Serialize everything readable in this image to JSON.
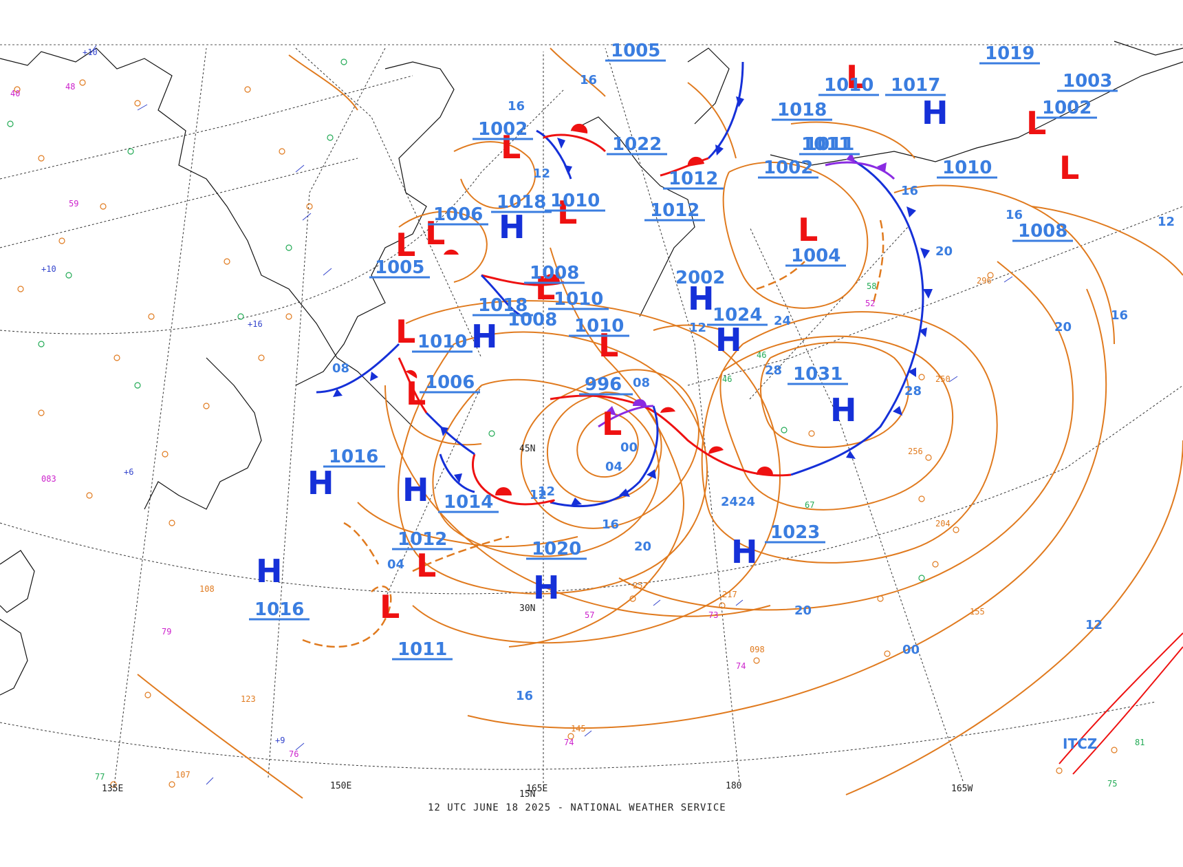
{
  "title": "12 UTC JUNE 18 2025 - NATIONAL WEATHER SERVICE",
  "colors": {
    "isobar": "#e07a1e",
    "isobar_label": "#3a7de0",
    "high": "#1530d8",
    "low": "#ee1111",
    "cold_front": "#1530d8",
    "warm_front": "#ee1111",
    "occluded_front": "#8a2be2",
    "coast": "#111111",
    "grid": "#333333",
    "obs_green": "#22aa55",
    "obs_magenta": "#cc22cc",
    "obs_orange": "#e07a1e",
    "obs_blue": "#3344cc"
  },
  "longitude_labels": [
    "135E",
    "150E",
    "165E",
    "180",
    "165W"
  ],
  "latitude_labels": [
    "45N",
    "30N",
    "15N"
  ],
  "isobar_labels": [
    "16",
    "12",
    "08",
    "04",
    "00",
    "20",
    "24",
    "28",
    "16",
    "12",
    "20",
    "24",
    "28",
    "16",
    "12",
    "16",
    "20",
    "16",
    "12",
    "08",
    "04",
    "00",
    "12",
    "16",
    "20",
    "24",
    "16",
    "12"
  ],
  "pressure_centers": [
    {
      "type": "H",
      "value": "1016"
    },
    {
      "type": "H",
      "value": "1014"
    },
    {
      "type": "H",
      "value": "1016"
    },
    {
      "type": "H",
      "value": "1020"
    },
    {
      "type": "H",
      "value": "1023"
    },
    {
      "type": "H",
      "value": "1031"
    },
    {
      "type": "H",
      "value": "1024"
    },
    {
      "type": "H",
      "value": "1018"
    },
    {
      "type": "H",
      "value": "1018"
    },
    {
      "type": "H",
      "value": "1017"
    },
    {
      "type": "L",
      "value": "1002"
    },
    {
      "type": "L",
      "value": "1006"
    },
    {
      "type": "L",
      "value": "1005"
    },
    {
      "type": "L",
      "value": "1010"
    },
    {
      "type": "L",
      "value": "1006"
    },
    {
      "type": "L",
      "value": "1008"
    },
    {
      "type": "L",
      "value": "1010"
    },
    {
      "type": "L",
      "value": "1010"
    },
    {
      "type": "L",
      "value": "996"
    },
    {
      "type": "L",
      "value": "1012"
    },
    {
      "type": "L",
      "value": "1011"
    },
    {
      "type": "L",
      "value": "1004"
    },
    {
      "type": "L",
      "value": "1011"
    },
    {
      "type": "L",
      "value": "1002"
    },
    {
      "type": "L",
      "value": "1010"
    }
  ],
  "other_pressure_labels": [
    "1005",
    "1022",
    "1012",
    "1012",
    "1010",
    "1008",
    "1018",
    "1010",
    "1019",
    "1003",
    "1011",
    "1008",
    "1002"
  ],
  "itcz_label": "ITCZ"
}
